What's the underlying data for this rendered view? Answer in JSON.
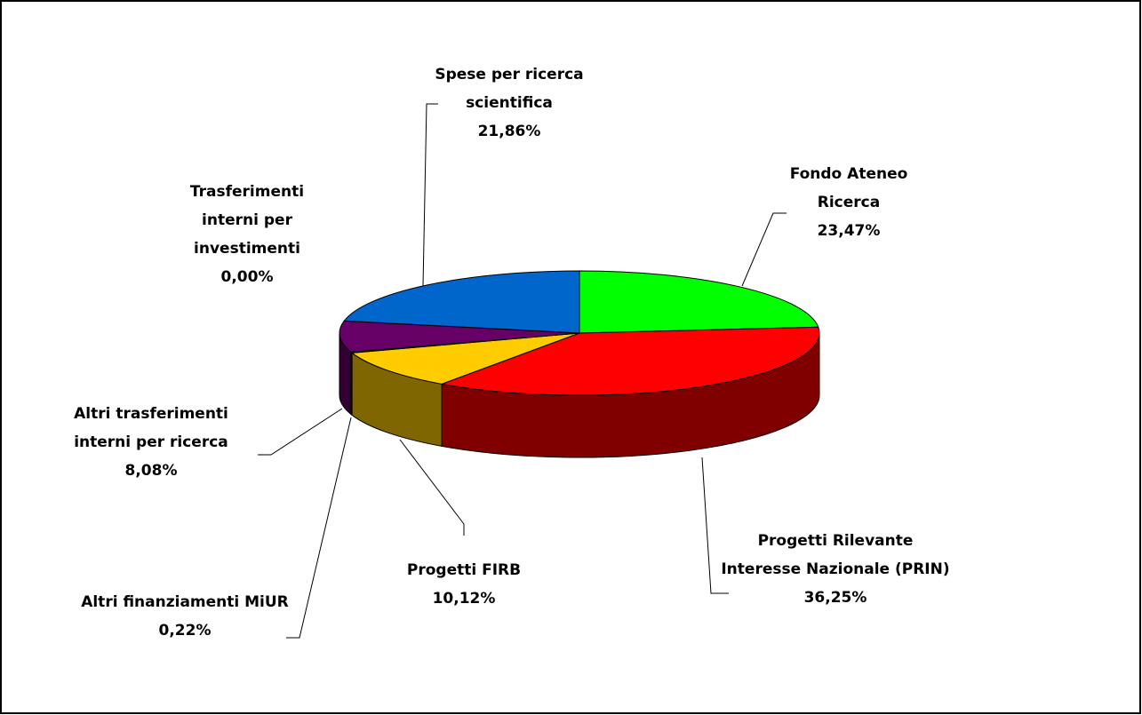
{
  "chart_data": {
    "type": "pie3d",
    "categories": [
      "Fondo Ateneo Ricerca",
      "Progetti Rilevante Interesse Nazionale (PRIN)",
      "Progetti FIRB",
      "Altri finanziamenti MiUR",
      "Altri trasferimenti interni per ricerca",
      "Trasferimenti interni per investimenti",
      "Spese per ricerca scientifica"
    ],
    "values": [
      23.47,
      36.25,
      10.12,
      0.22,
      8.08,
      0.0,
      21.86
    ],
    "value_labels": [
      "23,47%",
      "36,25%",
      "10,12%",
      "0,22%",
      "8,08%",
      "0,00%",
      "21,86%"
    ],
    "colors": [
      "#00ff00",
      "#ff0000",
      "#ffcc00",
      "#ff99cc",
      "#660066",
      "#000080",
      "#0066cc"
    ]
  }
}
